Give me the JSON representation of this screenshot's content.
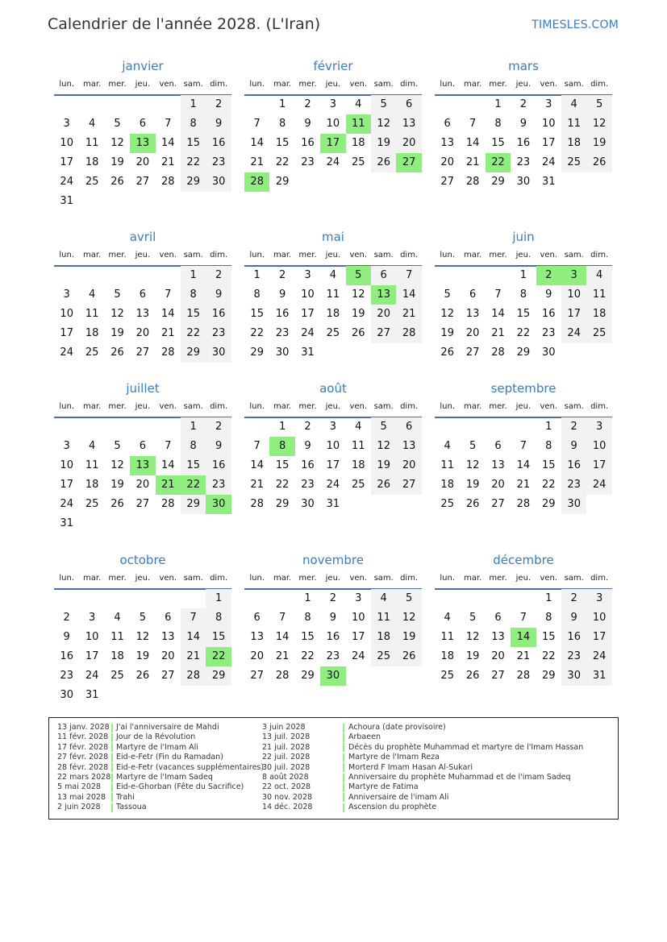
{
  "header": {
    "title": "Calendrier de l'année 2028. (L'Iran)",
    "brand": "TIMESLES.COM"
  },
  "year": 2028,
  "weekdays": [
    "lun.",
    "mar.",
    "mer.",
    "jeu.",
    "ven.",
    "sam.",
    "dim."
  ],
  "colors": {
    "accent": "#3a7cc2",
    "holiday": "#90ee80",
    "weekend": "#f2f2f2",
    "rule": "#4a6fa5"
  },
  "months": [
    {
      "name": "janvier",
      "holidays": [
        13
      ]
    },
    {
      "name": "février",
      "holidays": [
        11,
        17,
        27,
        28
      ]
    },
    {
      "name": "mars",
      "holidays": [
        22
      ]
    },
    {
      "name": "avril",
      "holidays": []
    },
    {
      "name": "mai",
      "holidays": [
        5,
        13
      ]
    },
    {
      "name": "juin",
      "holidays": [
        2,
        3
      ]
    },
    {
      "name": "juillet",
      "holidays": [
        13,
        21,
        22,
        30
      ]
    },
    {
      "name": "août",
      "holidays": [
        8
      ]
    },
    {
      "name": "septembre",
      "holidays": []
    },
    {
      "name": "octobre",
      "holidays": [
        22
      ]
    },
    {
      "name": "novembre",
      "holidays": [
        30
      ]
    },
    {
      "name": "décembre",
      "holidays": [
        14
      ]
    }
  ],
  "holidays": [
    {
      "date": "13 janv. 2028",
      "name": "J'ai l'anniversaire de Mahdi"
    },
    {
      "date": "11 févr. 2028",
      "name": "Jour de la Révolution"
    },
    {
      "date": "17 févr. 2028",
      "name": "Martyre de l'Imam Ali"
    },
    {
      "date": "27 févr. 2028",
      "name": "Eid-e-Fetr (Fin du Ramadan)"
    },
    {
      "date": "28 févr. 2028",
      "name": "Eid-e-Fetr (vacances supplémentaires)"
    },
    {
      "date": "22 mars 2028",
      "name": "Martyre de l'Imam Sadeq"
    },
    {
      "date": "5 mai 2028",
      "name": "Eid-e-Ghorban (Fête du Sacrifice)"
    },
    {
      "date": "13 mai 2028",
      "name": "Trahi"
    },
    {
      "date": "2 juin 2028",
      "name": "Tassoua"
    },
    {
      "date": "3 juin 2028",
      "name": "Achoura (date provisoire)"
    },
    {
      "date": "13 juil. 2028",
      "name": "Arbaeen"
    },
    {
      "date": "21 juil. 2028",
      "name": "Décès du prophète Muhammad et martyre de l'Imam Hassan"
    },
    {
      "date": "22 juil. 2028",
      "name": "Martyre de l'Imam Reza"
    },
    {
      "date": "30 juil. 2028",
      "name": "Morterd F Imam Hasan Al-Sukari"
    },
    {
      "date": "8 août 2028",
      "name": "Anniversaire du prophète Muhammad et de l'imam Sadeq"
    },
    {
      "date": "22 oct. 2028",
      "name": "Martyre de Fatima"
    },
    {
      "date": "30 nov. 2028",
      "name": "Anniversaire de l'imam Ali"
    },
    {
      "date": "14 déc. 2028",
      "name": "Ascension du prophète"
    }
  ]
}
